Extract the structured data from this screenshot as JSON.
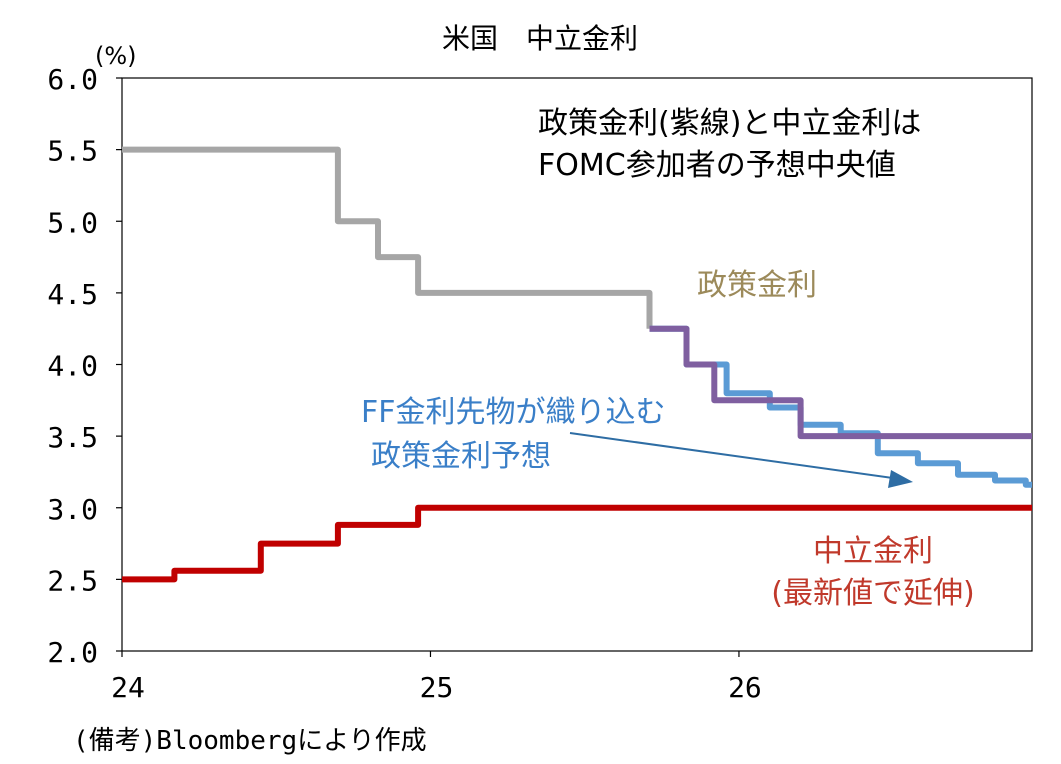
{
  "chart_data": {
    "type": "line",
    "title": "米国　中立金利",
    "ylabel": "(%)",
    "ylim": [
      2.0,
      6.0
    ],
    "yticks": [
      "6.0",
      "5.5",
      "5.0",
      "4.5",
      "4.0",
      "3.5",
      "3.0",
      "2.5",
      "2.0"
    ],
    "xlim": [
      24,
      26.95
    ],
    "xticks": [
      "24",
      "25",
      "26"
    ],
    "grid": false,
    "note": "(備考)Bloombergにより作成",
    "annotations": {
      "box_line1": "政策金利(紫線)と中立金利は",
      "box_line2": "FOMC参加者の予想中央値",
      "policy_label": "政策金利",
      "futures_line1": "FF金利先物が織り込む",
      "futures_line2": "政策金利予想",
      "neutral_line1": "中立金利",
      "neutral_line2": "(最新値で延伸)"
    },
    "colors": {
      "policy_actual": "#a6a6a6",
      "policy_fomc": "#7f5fa0",
      "futures": "#5b9bd5",
      "neutral": "#c00000",
      "policy_label": "#9c8a5a",
      "futures_label": "#3a7fc8",
      "neutral_label": "#c0392b",
      "arrow": "#2e6da4"
    },
    "series": [
      {
        "key": "policy_actual",
        "x": [
          24.0,
          24.7,
          24.7,
          24.83,
          24.83,
          24.96,
          24.96,
          25.71,
          25.71
        ],
        "values": [
          5.5,
          5.5,
          5.0,
          5.0,
          4.75,
          4.75,
          4.5,
          4.5,
          4.25
        ]
      },
      {
        "key": "futures",
        "x": [
          25.71,
          25.83,
          25.83,
          25.96,
          25.96,
          26.1,
          26.1,
          26.2,
          26.2,
          26.33,
          26.33,
          26.45,
          26.45,
          26.58,
          26.58,
          26.71,
          26.71,
          26.83,
          26.83,
          26.93,
          26.93,
          26.95
        ],
        "values": [
          4.25,
          4.25,
          4.0,
          4.0,
          3.8,
          3.8,
          3.7,
          3.7,
          3.58,
          3.58,
          3.52,
          3.52,
          3.38,
          3.38,
          3.31,
          3.31,
          3.23,
          3.23,
          3.19,
          3.19,
          3.16,
          3.16
        ]
      },
      {
        "key": "policy_fomc",
        "x": [
          25.71,
          25.83,
          25.83,
          25.92,
          25.92,
          25.96,
          25.96,
          26.2,
          26.2,
          26.95
        ],
        "values": [
          4.25,
          4.25,
          4.0,
          4.0,
          3.75,
          3.75,
          3.75,
          3.75,
          3.5,
          3.5
        ]
      },
      {
        "key": "neutral",
        "x": [
          24.0,
          24.17,
          24.17,
          24.45,
          24.45,
          24.7,
          24.7,
          24.96,
          24.96,
          26.95
        ],
        "values": [
          2.5,
          2.5,
          2.56,
          2.56,
          2.75,
          2.75,
          2.88,
          2.88,
          3.0,
          3.0
        ]
      }
    ]
  }
}
